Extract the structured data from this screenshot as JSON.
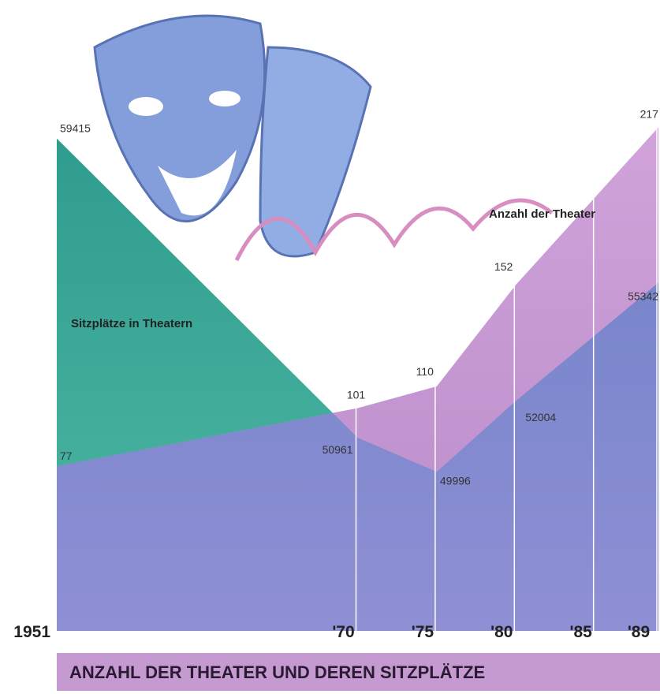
{
  "chart_data": {
    "type": "area",
    "title": "ANZAHL DER THEATER UND DEREN SITZPLÄTZE",
    "xlim": [
      1951,
      1989
    ],
    "xticks": [
      {
        "value": 1951,
        "label": "1951"
      },
      {
        "value": 1970,
        "label": "'70"
      },
      {
        "value": 1975,
        "label": "'75"
      },
      {
        "value": 1980,
        "label": "'80"
      },
      {
        "value": 1985,
        "label": "'85"
      },
      {
        "value": 1989,
        "label": "'89"
      }
    ],
    "ylim": [
      45500,
      61100
    ],
    "y2lim": [
      9,
      237
    ],
    "series": [
      {
        "name": "Sitzplätze in Theatern",
        "color": "#3aa394",
        "x": [
          1951,
          1970,
          1975,
          1980,
          1989
        ],
        "values": [
          59415,
          50961,
          49996,
          52004,
          55342
        ]
      },
      {
        "name": "Anzahl der Theater",
        "color": "#c594cf",
        "axis": "y2",
        "x": [
          1951,
          1970,
          1975,
          1980,
          1989
        ],
        "values": [
          77,
          101,
          110,
          152,
          217
        ]
      }
    ]
  }
}
